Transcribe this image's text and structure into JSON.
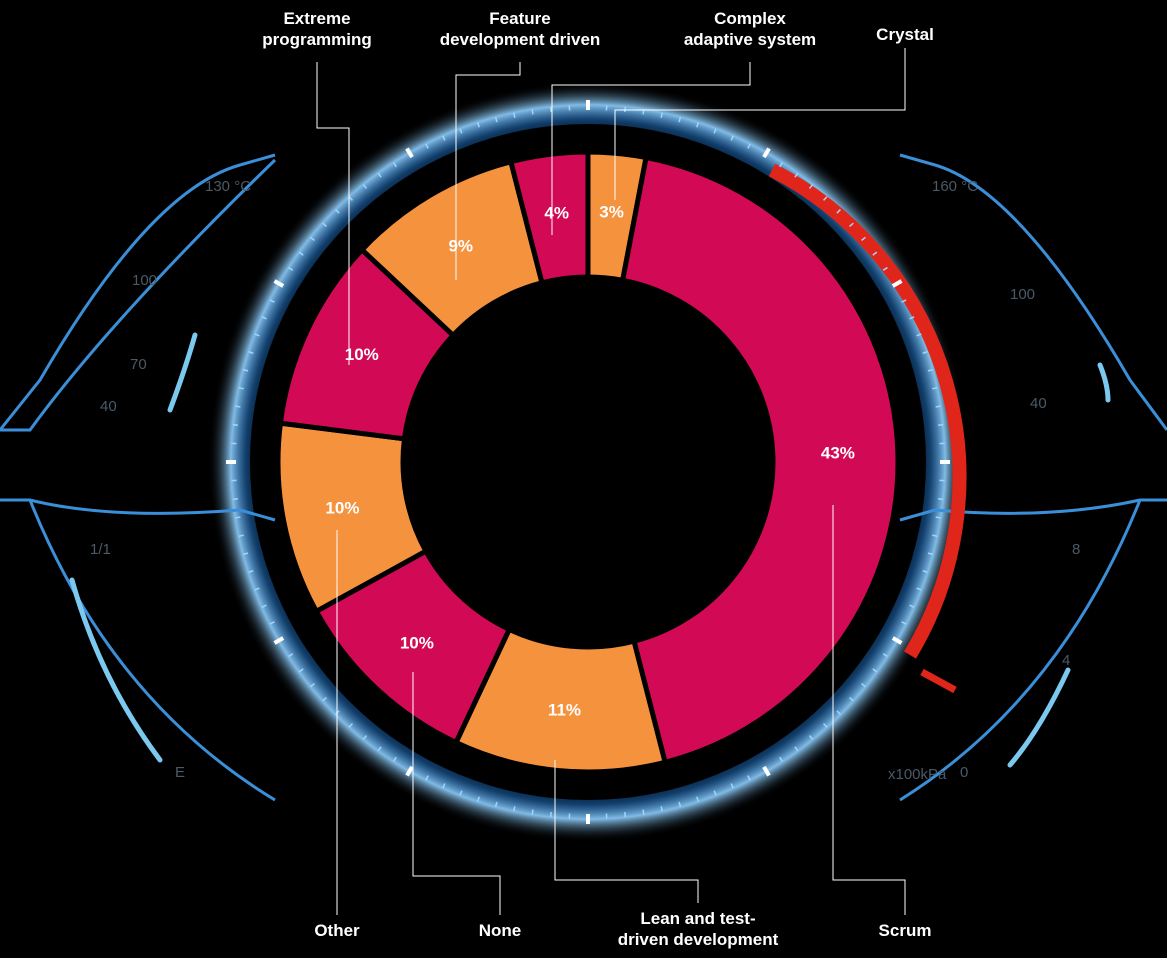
{
  "chart_data": {
    "type": "donut",
    "categories": [
      "Crystal",
      "Scrum",
      "Lean and test-\ndriven development",
      "None",
      "Other",
      "Extreme\nprogramming",
      "Feature\ndevelopment driven",
      "Complex\nadaptive system"
    ],
    "values": [
      3,
      43,
      11,
      10,
      10,
      10,
      9,
      4
    ],
    "value_labels": [
      "3%",
      "43%",
      "11%",
      "10%",
      "10%",
      "10%",
      "9%",
      "4%"
    ],
    "colors": [
      "#f5923e",
      "#d20a55",
      "#f5923e",
      "#d20a55",
      "#f5923e",
      "#d20a55",
      "#f5923e",
      "#d20a55"
    ]
  },
  "dashboard": {
    "left_top_labels": [
      "130 °C",
      "100",
      "70",
      "40"
    ],
    "left_bottom_labels": [
      "1/1",
      "E"
    ],
    "right_top_labels": [
      "160 °C",
      "100",
      "40"
    ],
    "right_bottom_labels": [
      "8",
      "4",
      "0"
    ],
    "pressure_unit": "x100kPa"
  }
}
